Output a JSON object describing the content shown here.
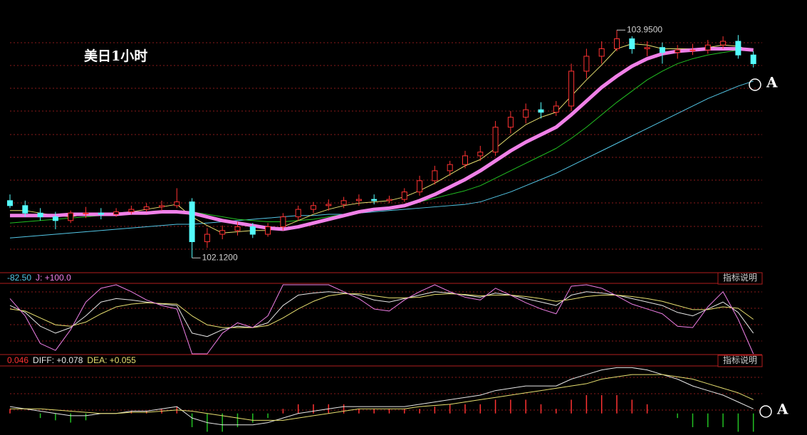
{
  "chart_data": [
    {
      "type": "candlestick",
      "title": "美日1小时",
      "ylim": [
        102.03,
        104.02
      ],
      "grid": true,
      "up_color": "#ff3232",
      "down_color": "#54fcfc",
      "open": [
        102.58,
        102.54,
        102.48,
        102.45,
        102.42,
        102.48,
        102.48,
        102.47,
        102.49,
        102.51,
        102.53,
        102.54,
        102.57,
        102.25,
        102.31,
        102.34,
        102.37,
        102.31,
        102.37,
        102.45,
        102.51,
        102.54,
        102.55,
        102.58,
        102.59,
        102.58,
        102.59,
        102.65,
        102.74,
        102.82,
        102.87,
        102.94,
        102.97,
        103.17,
        103.25,
        103.31,
        103.29,
        103.34,
        103.62,
        103.74,
        103.8,
        103.88,
        103.8,
        103.81,
        103.77,
        103.79,
        103.79,
        103.83,
        103.86,
        103.75
      ],
      "high": [
        102.63,
        102.58,
        102.52,
        102.49,
        102.5,
        102.53,
        102.52,
        102.52,
        102.54,
        102.56,
        102.58,
        102.68,
        102.6,
        102.36,
        102.38,
        102.41,
        102.4,
        102.4,
        102.48,
        102.54,
        102.57,
        102.59,
        102.61,
        102.63,
        102.63,
        102.62,
        102.68,
        102.78,
        102.86,
        102.9,
        102.98,
        103.02,
        103.22,
        103.3,
        103.36,
        103.37,
        103.38,
        103.68,
        103.8,
        103.86,
        103.95,
        103.9,
        103.86,
        103.85,
        103.83,
        103.84,
        103.87,
        103.9,
        103.91,
        103.78
      ],
      "low": [
        102.52,
        102.45,
        102.42,
        102.35,
        102.4,
        102.44,
        102.43,
        102.45,
        102.47,
        102.49,
        102.5,
        102.52,
        102.12,
        102.2,
        102.27,
        102.3,
        102.28,
        102.29,
        102.34,
        102.42,
        102.48,
        102.5,
        102.52,
        102.54,
        102.55,
        102.56,
        102.57,
        102.62,
        102.71,
        102.78,
        102.84,
        102.9,
        102.94,
        103.12,
        103.2,
        103.24,
        103.26,
        103.3,
        103.56,
        103.68,
        103.78,
        103.76,
        103.74,
        103.68,
        103.72,
        103.75,
        103.76,
        103.8,
        103.72,
        103.65
      ],
      "close": [
        102.54,
        102.48,
        102.45,
        102.42,
        102.48,
        102.48,
        102.47,
        102.49,
        102.51,
        102.53,
        102.54,
        102.57,
        102.25,
        102.31,
        102.34,
        102.37,
        102.31,
        102.37,
        102.45,
        102.51,
        102.54,
        102.55,
        102.58,
        102.59,
        102.58,
        102.59,
        102.65,
        102.74,
        102.82,
        102.87,
        102.94,
        102.97,
        103.17,
        103.25,
        103.31,
        103.29,
        103.34,
        103.62,
        103.74,
        103.8,
        103.88,
        103.8,
        103.81,
        103.77,
        103.79,
        103.79,
        103.83,
        103.86,
        103.75,
        103.68
      ],
      "series": [
        {
          "color": "#54c8e8",
          "line_width": 1,
          "values": [
            102.28,
            102.29,
            102.3,
            102.31,
            102.32,
            102.33,
            102.34,
            102.35,
            102.36,
            102.37,
            102.38,
            102.39,
            102.39,
            102.4,
            102.41,
            102.42,
            102.43,
            102.44,
            102.45,
            102.46,
            102.46,
            102.47,
            102.47,
            102.48,
            102.49,
            102.5,
            102.51,
            102.52,
            102.53,
            102.54,
            102.55,
            102.57,
            102.61,
            102.65,
            102.7,
            102.75,
            102.8,
            102.86,
            102.92,
            102.98,
            103.04,
            103.1,
            103.16,
            103.22,
            103.28,
            103.34,
            103.4,
            103.45,
            103.5,
            103.54
          ]
        },
        {
          "color": "#22c022",
          "line_width": 1,
          "values": [
            102.4,
            102.41,
            102.42,
            102.43,
            102.44,
            102.45,
            102.46,
            102.47,
            102.47,
            102.48,
            102.49,
            102.5,
            102.49,
            102.47,
            102.45,
            102.43,
            102.42,
            102.41,
            102.41,
            102.42,
            102.43,
            102.45,
            102.47,
            102.49,
            102.51,
            102.53,
            102.55,
            102.57,
            102.6,
            102.63,
            102.66,
            102.7,
            102.76,
            102.82,
            102.88,
            102.94,
            103.0,
            103.08,
            103.17,
            103.27,
            103.37,
            103.46,
            103.55,
            103.62,
            103.68,
            103.72,
            103.75,
            103.77,
            103.79,
            103.79
          ]
        },
        {
          "color": "#e8e070",
          "line_width": 1,
          "values": [
            102.5,
            102.5,
            102.48,
            102.46,
            102.45,
            102.47,
            102.48,
            102.48,
            102.49,
            102.51,
            102.53,
            102.55,
            102.45,
            102.38,
            102.32,
            102.33,
            102.34,
            102.34,
            102.37,
            102.42,
            102.47,
            102.51,
            102.54,
            102.56,
            102.57,
            102.58,
            102.61,
            102.66,
            102.72,
            102.79,
            102.86,
            102.91,
            103.0,
            103.1,
            103.19,
            103.25,
            103.29,
            103.42,
            103.55,
            103.67,
            103.8,
            103.84,
            103.83,
            103.8,
            103.8,
            103.8,
            103.81,
            103.83,
            103.82,
            103.78
          ]
        },
        {
          "color": "#f080e8",
          "line_width": 5,
          "values": [
            102.46,
            102.46,
            102.46,
            102.46,
            102.47,
            102.47,
            102.47,
            102.47,
            102.48,
            102.48,
            102.49,
            102.49,
            102.48,
            102.45,
            102.42,
            102.4,
            102.38,
            102.36,
            102.35,
            102.37,
            102.4,
            102.43,
            102.46,
            102.49,
            102.51,
            102.52,
            102.54,
            102.58,
            102.63,
            102.69,
            102.75,
            102.82,
            102.9,
            102.98,
            103.05,
            103.11,
            103.17,
            103.27,
            103.38,
            103.49,
            103.58,
            103.66,
            103.72,
            103.76,
            103.78,
            103.79,
            103.8,
            103.8,
            103.8,
            103.79
          ]
        }
      ],
      "annotations": [
        {
          "index": 40,
          "value": 103.95,
          "label": "103.9500"
        },
        {
          "index": 12,
          "value": 102.12,
          "label": "102.1200"
        }
      ],
      "marker": "A"
    },
    {
      "type": "kdj",
      "ylim": [
        0,
        100
      ],
      "grid": true,
      "button": "指标说明",
      "header": [
        {
          "text": "-82.50",
          "color": "#54c8e8"
        },
        {
          "text": "J: +100.0",
          "color": "#f080e8"
        }
      ],
      "series": [
        {
          "color": "#e8e8e8",
          "values": [
            70,
            60,
            40,
            30,
            38,
            55,
            75,
            80,
            78,
            75,
            72,
            70,
            30,
            25,
            35,
            40,
            38,
            45,
            70,
            85,
            88,
            90,
            88,
            85,
            78,
            75,
            80,
            85,
            90,
            88,
            85,
            82,
            88,
            85,
            80,
            75,
            70,
            85,
            90,
            88,
            85,
            80,
            75,
            70,
            60,
            55,
            65,
            75,
            60,
            30
          ]
        },
        {
          "color": "#e8e070",
          "values": [
            65,
            62,
            52,
            42,
            40,
            46,
            58,
            68,
            72,
            74,
            73,
            72,
            55,
            42,
            38,
            38,
            38,
            41,
            52,
            65,
            76,
            84,
            87,
            87,
            84,
            81,
            81,
            82,
            86,
            87,
            86,
            84,
            85,
            85,
            83,
            80,
            76,
            79,
            83,
            85,
            85,
            83,
            80,
            76,
            70,
            64,
            64,
            68,
            66,
            50
          ]
        },
        {
          "color": "#f080e8",
          "values": [
            80,
            55,
            15,
            5,
            35,
            75,
            95,
            100,
            90,
            78,
            70,
            65,
            0,
            0,
            30,
            45,
            38,
            55,
            100,
            100,
            100,
            100,
            90,
            80,
            65,
            62,
            78,
            90,
            100,
            90,
            82,
            78,
            95,
            85,
            74,
            65,
            58,
            98,
            100,
            95,
            84,
            72,
            65,
            58,
            40,
            38,
            68,
            90,
            50,
            0
          ]
        }
      ]
    },
    {
      "type": "macd",
      "ylim": [
        -0.06,
        0.22
      ],
      "button": "指标说明",
      "header": [
        {
          "text": "0.046",
          "color": "#ff3232"
        },
        {
          "text": "DIFF: +0.078",
          "color": "#e8e8e8"
        },
        {
          "text": "DEA: +0.055",
          "color": "#e8e070"
        }
      ],
      "bar_color": "#ff3232",
      "bars": [
        0.02,
        0.0,
        -0.02,
        -0.03,
        -0.04,
        -0.03,
        0.0,
        0.0,
        0.01,
        0.01,
        0.02,
        0.03,
        -0.06,
        -0.08,
        -0.08,
        -0.06,
        -0.04,
        -0.02,
        0.02,
        0.04,
        0.04,
        0.04,
        0.04,
        0.02,
        0.02,
        0.02,
        0.02,
        0.02,
        0.03,
        0.04,
        0.04,
        0.04,
        0.06,
        0.06,
        0.06,
        0.04,
        0.02,
        0.06,
        0.08,
        0.08,
        0.08,
        0.06,
        0.04,
        0.0,
        -0.02,
        -0.06,
        -0.06,
        -0.06,
        -0.08,
        -0.08
      ],
      "series": [
        {
          "color": "#e8e8e8",
          "values": [
            0.03,
            0.02,
            0.01,
            0.0,
            -0.01,
            -0.01,
            0.0,
            0.0,
            0.01,
            0.01,
            0.02,
            0.03,
            -0.02,
            -0.04,
            -0.05,
            -0.05,
            -0.05,
            -0.04,
            -0.02,
            0.0,
            0.01,
            0.02,
            0.03,
            0.03,
            0.03,
            0.03,
            0.03,
            0.04,
            0.05,
            0.06,
            0.07,
            0.08,
            0.1,
            0.11,
            0.12,
            0.12,
            0.12,
            0.15,
            0.17,
            0.19,
            0.2,
            0.2,
            0.19,
            0.17,
            0.15,
            0.12,
            0.1,
            0.08,
            0.05,
            0.02
          ]
        },
        {
          "color": "#e8e070",
          "values": [
            0.02,
            0.02,
            0.02,
            0.015,
            0.01,
            0.005,
            0.0,
            0.0,
            0.005,
            0.005,
            0.01,
            0.015,
            0.01,
            0.0,
            -0.01,
            -0.02,
            -0.03,
            -0.03,
            -0.03,
            -0.02,
            -0.01,
            0.0,
            0.01,
            0.02,
            0.02,
            0.02,
            0.02,
            0.03,
            0.035,
            0.04,
            0.05,
            0.06,
            0.07,
            0.08,
            0.09,
            0.1,
            0.11,
            0.12,
            0.13,
            0.15,
            0.16,
            0.17,
            0.17,
            0.17,
            0.16,
            0.15,
            0.13,
            0.11,
            0.09,
            0.06
          ]
        }
      ],
      "marker": "A"
    }
  ]
}
